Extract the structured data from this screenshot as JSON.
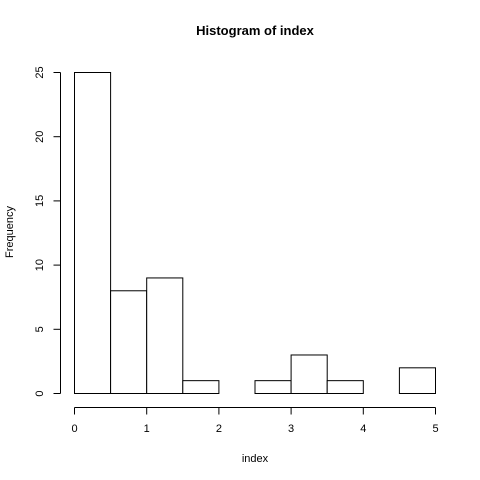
{
  "chart_data": {
    "type": "bar",
    "title": "Histogram of index",
    "xlabel": "index",
    "ylabel": "Frequency",
    "bins": [
      {
        "x0": 0.0,
        "x1": 0.5,
        "count": 25
      },
      {
        "x0": 0.5,
        "x1": 1.0,
        "count": 8
      },
      {
        "x0": 1.0,
        "x1": 1.5,
        "count": 9
      },
      {
        "x0": 1.5,
        "x1": 2.0,
        "count": 1
      },
      {
        "x0": 2.0,
        "x1": 2.5,
        "count": 0
      },
      {
        "x0": 2.5,
        "x1": 3.0,
        "count": 1
      },
      {
        "x0": 3.0,
        "x1": 3.5,
        "count": 3
      },
      {
        "x0": 3.5,
        "x1": 4.0,
        "count": 1
      },
      {
        "x0": 4.0,
        "x1": 4.5,
        "count": 0
      },
      {
        "x0": 4.5,
        "x1": 5.0,
        "count": 2
      }
    ],
    "xticks": [
      0,
      1,
      2,
      3,
      4,
      5
    ],
    "yticks": [
      0,
      5,
      10,
      15,
      20,
      25
    ],
    "xlim": [
      0,
      5
    ],
    "ylim": [
      0,
      25
    ],
    "grid": false,
    "legend": false
  }
}
